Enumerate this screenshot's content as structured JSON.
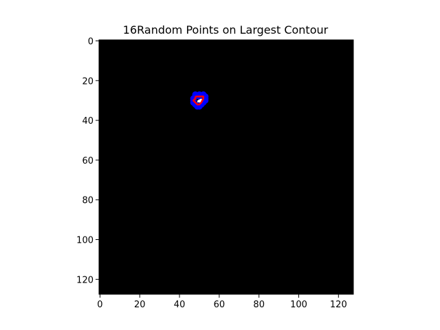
{
  "chart_data": {
    "type": "scatter",
    "title": "16Random Points on Largest Contour",
    "xlabel": "",
    "ylabel": "",
    "image_width": 128,
    "image_height": 128,
    "xlim": [
      -0.5,
      127.5
    ],
    "ylim": [
      127.5,
      -0.5
    ],
    "x_ticks": [
      0,
      20,
      40,
      60,
      80,
      100,
      120
    ],
    "y_ticks": [
      0,
      20,
      40,
      60,
      80,
      100,
      120
    ],
    "x_tick_labels": [
      "0",
      "20",
      "40",
      "60",
      "80",
      "100",
      "120"
    ],
    "y_tick_labels": [
      "0",
      "20",
      "40",
      "60",
      "80",
      "100",
      "120"
    ],
    "grid": false,
    "background_color": "#000000",
    "blob": {
      "color": "#ffffff",
      "polygon": [
        [
          49,
          30
        ],
        [
          51,
          29
        ],
        [
          52,
          30
        ],
        [
          51,
          31
        ],
        [
          49,
          31
        ]
      ]
    },
    "series": [
      {
        "color": "#0000ff",
        "x": [
          48,
          50,
          52,
          53,
          53,
          53,
          52,
          51,
          50,
          49,
          48,
          47,
          47,
          47,
          48,
          50
        ],
        "y": [
          27,
          27,
          27,
          28,
          29,
          30,
          31,
          32,
          33,
          33,
          32,
          31,
          30,
          29,
          28,
          28
        ]
      },
      {
        "color": "#ff0000",
        "contour": [
          [
            48,
            28
          ],
          [
            50,
            28
          ],
          [
            52,
            28
          ],
          [
            52,
            29
          ],
          [
            51,
            31
          ],
          [
            50,
            32
          ],
          [
            49,
            32
          ],
          [
            48,
            31
          ],
          [
            47,
            30
          ],
          [
            48,
            29
          ]
        ]
      }
    ]
  }
}
